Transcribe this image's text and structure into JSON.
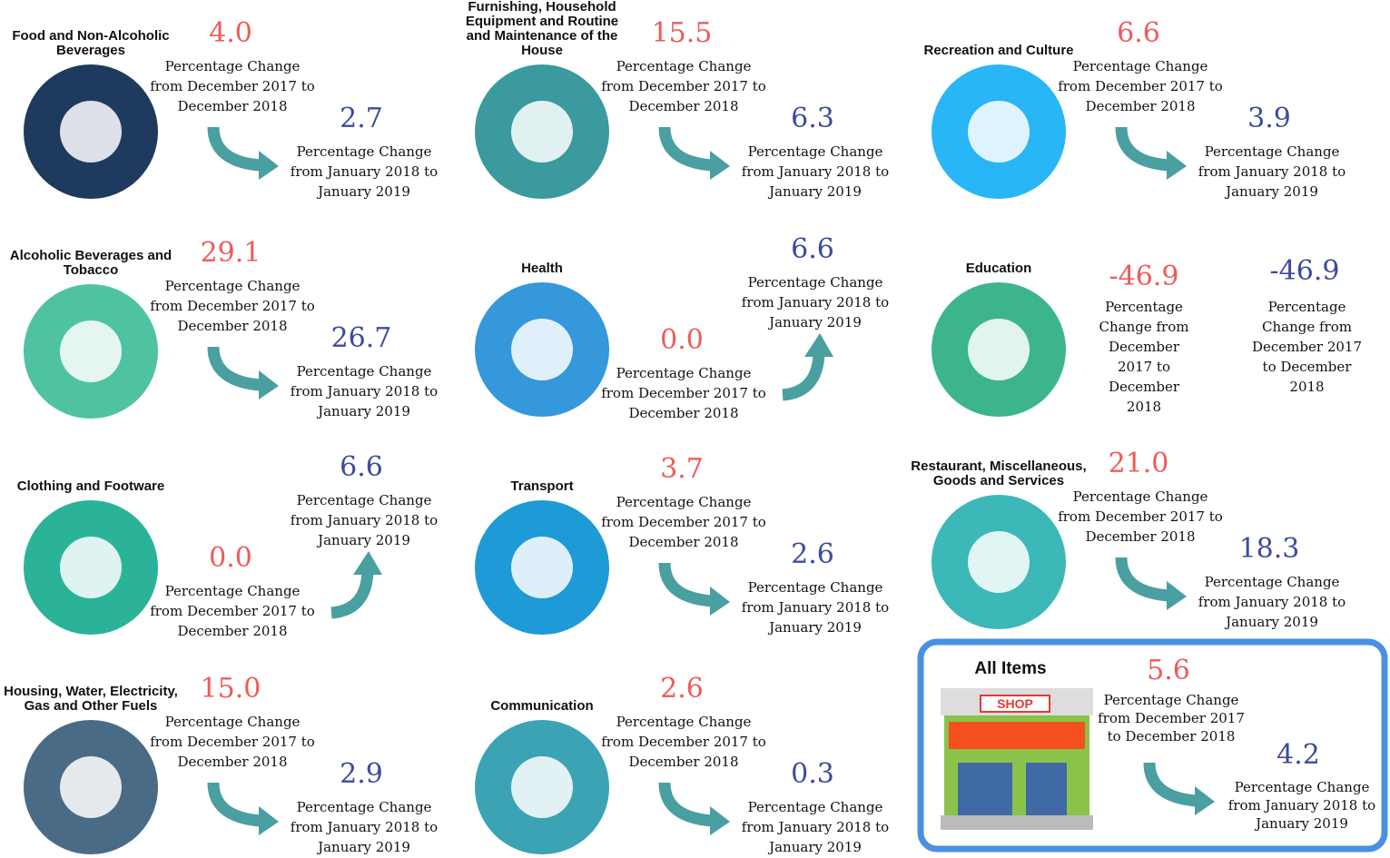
{
  "items": [
    {
      "label": "Food and Non-Alcoholic Beverages",
      "december_change": "4.0",
      "december_caption": "Percentage Change from December 2017 to December 2018",
      "january_change": "2.7",
      "january_caption": "Percentage Change from January 2018 to January 2019"
    },
    {
      "label": "Alcoholic Beverages and Tobacco",
      "december_change": "29.1",
      "december_caption": "Percentage Change from December 2017 to December 2018",
      "january_change": "26.7",
      "january_caption": "Percentage Change from January 2018 to January 2019"
    },
    {
      "label": "Clothing and Footware",
      "december_change": "0.0",
      "december_caption": "Percentage Change from December 2017 to December 2018",
      "january_change": "6.6",
      "january_caption": "Percentage Change from January 2018 to January 2019"
    },
    {
      "label": "Housing, Water, Electricity, Gas and Other Fuels",
      "december_change": "15.0",
      "december_caption": "Percentage Change from December 2017 to December 2018",
      "january_change": "2.9",
      "january_caption": "Percentage Change from January 2018 to January 2019"
    },
    {
      "label": "Furnishing, Household Equipment and Routine and Maintenance of the House",
      "december_change": "15.5",
      "december_caption": "Percentage Change from December 2017 to December 2018",
      "january_change": "6.3",
      "january_caption": "Percentage Change from January 2018 to January 2019"
    },
    {
      "label": "Health",
      "december_change": "0.0",
      "december_caption": "Percentage Change from December 2017 to December 2018",
      "january_change": "6.6",
      "january_caption": "Percentage Change from January 2018 to January 2019"
    },
    {
      "label": "Transport",
      "december_change": "3.7",
      "december_caption": "Percentage Change from December 2017 to December 2018",
      "january_change": "2.6",
      "january_caption": "Percentage Change from January 2018 to January 2019"
    },
    {
      "label": "Communication",
      "december_change": "2.6",
      "december_caption": "Percentage Change from December 2017 to December 2018",
      "january_change": "0.3",
      "january_caption": "Percentage Change from January 2018 to January 2019"
    },
    {
      "label": "Recreation and Culture",
      "december_change": "6.6",
      "december_caption": "Percentage Change from December 2017 to December 2018",
      "january_change": "3.9",
      "january_caption": "Percentage Change from January 2018 to January 2019"
    },
    {
      "label": "Education",
      "december_change": "-46.9",
      "december_caption": "Percentage Change from December 2017 to December 2018",
      "january_change": "-46.9",
      "january_caption": "Percentage Change from December 2017 to December 2018"
    },
    {
      "label": "Restaurant, Miscellaneous, Goods and Services",
      "december_change": "21.0",
      "december_caption": "Percentage Change from December 2017 to December 2018",
      "january_change": "18.3",
      "january_caption": "Percentage Change from January 2018 to January 2019"
    }
  ],
  "all_items": {
    "label": "All Items",
    "shop_sign": "SHOP",
    "december_change": "5.6",
    "december_caption": "Percentage Change from December 2017 to December 2018",
    "january_change": "4.2",
    "january_caption": "Percentage Change from January 2018 to January 2019"
  }
}
